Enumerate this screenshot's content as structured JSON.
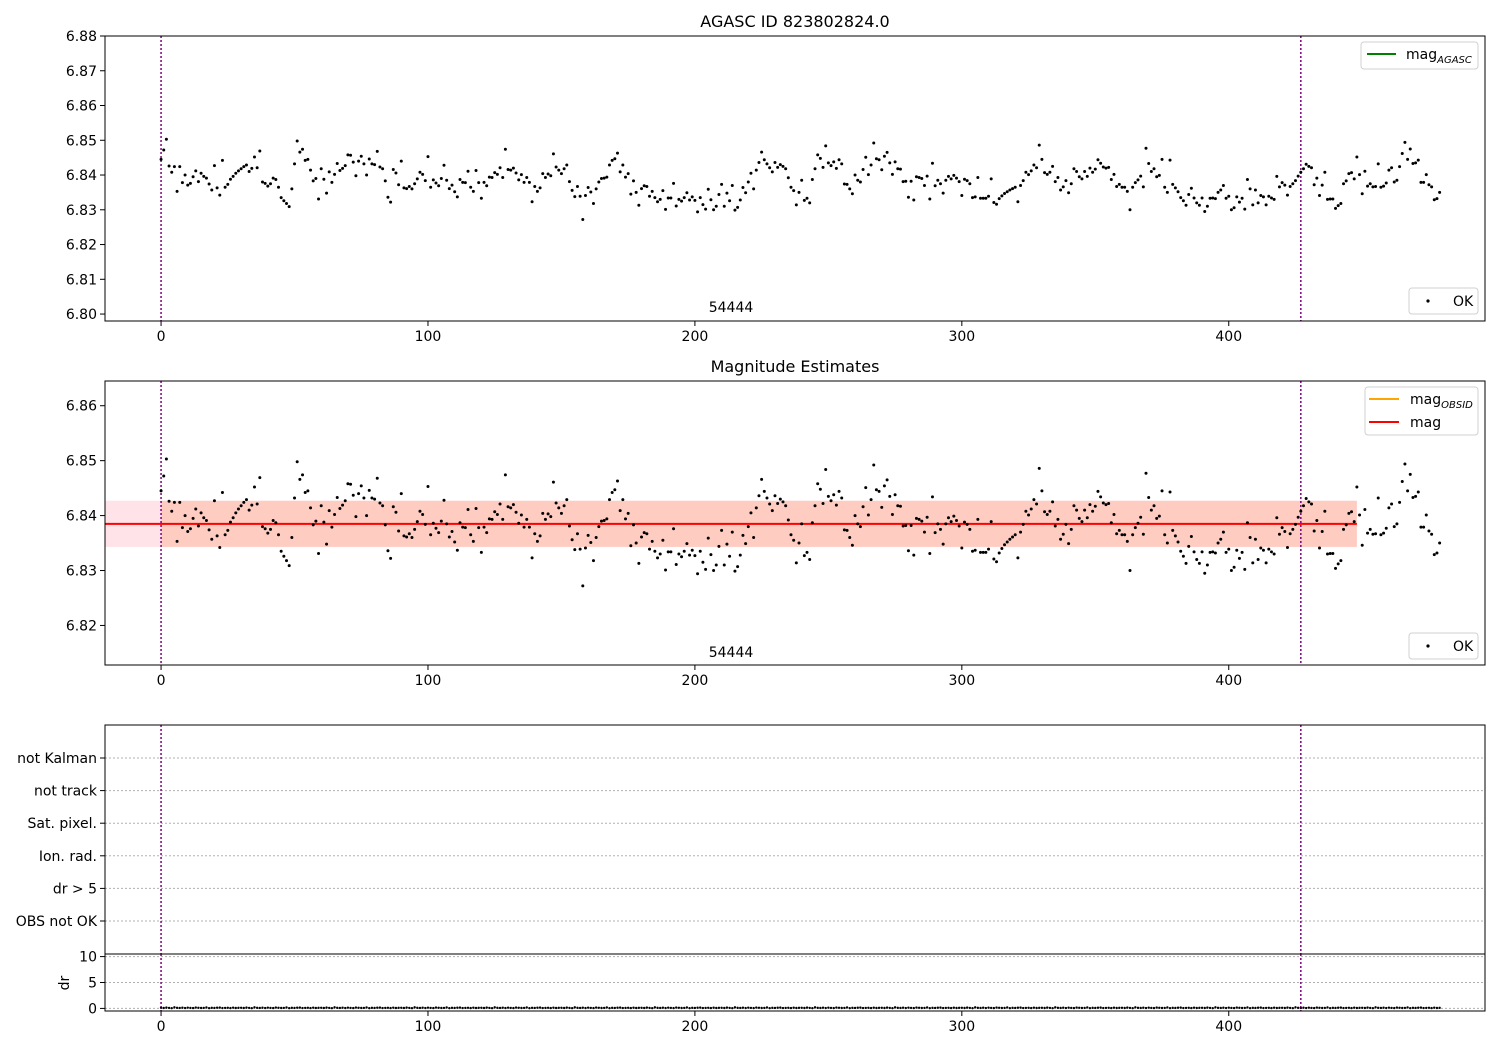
{
  "chart_data": [
    {
      "type": "scatter",
      "title": "AGASC ID 823802824.0",
      "xlim": [
        -21,
        496
      ],
      "ylim": [
        6.798,
        6.88
      ],
      "xticks": [
        0,
        100,
        200,
        300,
        400
      ],
      "yticks": [
        6.8,
        6.81,
        6.82,
        6.83,
        6.84,
        6.85,
        6.86,
        6.87,
        6.88
      ],
      "ytick_labels": [
        "6.80",
        "6.81",
        "6.82",
        "6.83",
        "6.84",
        "6.85",
        "6.86",
        "6.87",
        "6.88"
      ],
      "grid": false,
      "vlines": [
        0,
        427
      ],
      "annotation": {
        "text": "54444",
        "x": 213,
        "y": 6.8005
      },
      "legend_upper": {
        "placement": "top-right",
        "entries": [
          {
            "label": "mag",
            "subscript": "AGASC",
            "color": "#008000"
          }
        ]
      },
      "legend_lower": {
        "placement": "bottom-right",
        "entries": [
          {
            "label": "OK",
            "marker": "point",
            "color": "#000000"
          }
        ]
      },
      "series": [
        {
          "name": "OK",
          "values_ref": "magnitudes"
        }
      ]
    },
    {
      "type": "scatter",
      "title": "Magnitude Estimates",
      "xlim": [
        -21,
        496
      ],
      "ylim": [
        6.8128,
        6.8645
      ],
      "xticks": [
        0,
        100,
        200,
        300,
        400
      ],
      "yticks": [
        6.82,
        6.83,
        6.84,
        6.85,
        6.86
      ],
      "ytick_labels": [
        "6.82",
        "6.83",
        "6.84",
        "6.85",
        "6.86"
      ],
      "grid": false,
      "vlines": [
        0,
        427
      ],
      "annotation": {
        "text": "54444",
        "x": 213,
        "y": 6.8139
      },
      "band_obsid": {
        "x": [
          -21,
          448
        ],
        "y": [
          6.8343,
          6.8427
        ],
        "color": "#ffc0cb"
      },
      "band_mag": {
        "x": [
          0,
          448
        ],
        "y": [
          6.8343,
          6.8427
        ],
        "color": "#ffa07a"
      },
      "mean_line": {
        "value": 6.8385,
        "x": [
          -21,
          448
        ],
        "color": "#ff0000"
      },
      "legend_upper": {
        "placement": "top-right",
        "entries": [
          {
            "label": "mag",
            "subscript": "OBSID",
            "color": "#ffa500"
          },
          {
            "label": "mag",
            "subscript": "",
            "color": "#ff0000"
          }
        ]
      },
      "legend_lower": {
        "placement": "bottom-right",
        "entries": [
          {
            "label": "OK",
            "marker": "point",
            "color": "#000000"
          }
        ]
      },
      "series": [
        {
          "name": "OK",
          "values_ref": "magnitudes"
        }
      ]
    },
    {
      "type": "scatter",
      "title": "",
      "categories": [
        "OBS not OK",
        "dr > 5",
        "Ion. rad.",
        "Sat. pixel.",
        "not track",
        "not Kalman"
      ],
      "grid": true,
      "vlines": [
        0,
        427
      ],
      "xlim": [
        -21,
        496
      ]
    },
    {
      "type": "scatter",
      "title": "",
      "ylabel": "dr",
      "xlim": [
        -21,
        496
      ],
      "ylim": [
        -0.5,
        10.5
      ],
      "xticks": [
        0,
        100,
        200,
        300,
        400
      ],
      "yticks": [
        0,
        5,
        10
      ],
      "grid": true,
      "vlines": [
        0,
        427
      ],
      "series": [
        {
          "name": "dr",
          "values": [
            0.12,
            0.08,
            0.15,
            0.1,
            0.05,
            0.2,
            0.11,
            0.09,
            0.13,
            0.07,
            0.14,
            0.1,
            0.06,
            0.16,
            0.12,
            0.08,
            0.1,
            0.18,
            0.05,
            0.11,
            0.09,
            0.13,
            0.15,
            0.07,
            0.1,
            0.12,
            0.06,
            0.14,
            0.08,
            0.11
          ]
        }
      ]
    }
  ],
  "magnitudes": [
    6.8445,
    6.8472,
    6.8503,
    6.8426,
    6.8408,
    6.8424,
    6.8353,
    6.8424,
    6.8378,
    6.84,
    6.8371,
    6.8376,
    6.8395,
    6.8412,
    6.8381,
    6.8405,
    6.8396,
    6.8391,
    6.8374,
    6.8357,
    6.8427,
    6.8363,
    6.8342,
    6.8442,
    6.8365,
    6.8373,
    6.8388,
    6.8396,
    6.8405,
    6.8412,
    6.8418,
    6.8424,
    6.8429,
    6.841,
    6.8419,
    6.8452,
    6.8421,
    6.8469,
    6.838,
    6.8376,
    6.8368,
    6.8375,
    6.8391,
    6.8387,
    6.8365,
    6.8335,
    6.8326,
    6.8318,
    6.8309,
    6.836,
    6.8432,
    6.8498,
    6.8466,
    6.8474,
    6.8442,
    6.8445,
    6.8414,
    6.8383,
    6.839,
    6.8331,
    6.8418,
    6.8388,
    6.8348,
    6.8409,
    6.8379,
    6.8402,
    6.8433,
    6.8413,
    6.8419,
    6.8427,
    6.8458,
    6.8457,
    6.8437,
    6.8398,
    6.844,
    6.8454,
    6.8432,
    6.84,
    6.8446,
    6.8432,
    6.843,
    6.8468,
    6.8423,
    6.8418,
    6.8383,
    6.8336,
    6.8322,
    6.8416,
    6.8406,
    6.8372,
    6.844,
    6.8363,
    6.8361,
    6.8367,
    6.836,
    6.8375,
    6.8389,
    6.8408,
    6.8402,
    6.8384,
    6.8453,
    6.8365,
    6.8386,
    6.8377,
    6.8369,
    6.839,
    6.8428,
    6.8385,
    6.8361,
    6.8371,
    6.8352,
    6.8337,
    6.8387,
    6.8379,
    6.8378,
    6.8411,
    6.8365,
    6.8353,
    6.8413,
    6.8378,
    6.8333,
    6.8379,
    6.8369,
    6.8394,
    6.8393,
    6.8407,
    6.8402,
    6.8421,
    6.8393,
    6.8474,
    6.8416,
    6.8414,
    6.842,
    6.8406,
    6.8386,
    6.8401,
    6.8379,
    6.8393,
    6.8379,
    6.8323,
    6.8367,
    6.8353,
    6.8363,
    6.8404,
    6.8393,
    6.8403,
    6.8398,
    6.8461,
    6.8423,
    6.8414,
    6.8404,
    6.8418,
    6.8429,
    6.8381,
    6.8356,
    6.8338,
    6.8367,
    6.8339,
    6.8272,
    6.8341,
    6.8364,
    6.8351,
    6.8318,
    6.836,
    6.838,
    6.839,
    6.8391,
    6.8394,
    6.8429,
    6.8442,
    6.8447,
    6.8463,
    6.8409,
    6.8429,
    6.8394,
    6.8404,
    6.8345,
    6.8383,
    6.835,
    6.8313,
    6.8361,
    6.8369,
    6.8367,
    6.8339,
    6.8353,
    6.8335,
    6.8323,
    6.833,
    6.8355,
    6.8301,
    6.8334,
    6.8334,
    6.8376,
    6.8311,
    6.833,
    6.8325,
    6.8335,
    6.8349,
    6.8328,
    6.8337,
    6.8327,
    6.8294,
    6.8335,
    6.8315,
    6.8302,
    6.8359,
    6.8329,
    6.83,
    6.831,
    6.8344,
    6.8373,
    6.831,
    6.8348,
    6.8326,
    6.837,
    6.8299,
    6.8307,
    6.8328,
    6.8364,
    6.8349,
    6.838,
    6.8405,
    6.836,
    6.8414,
    6.8436,
    6.8466,
    6.8444,
    6.8432,
    6.8421,
    6.8409,
    6.8436,
    6.8422,
    6.843,
    6.8425,
    6.8418,
    6.8392,
    6.8365,
    6.8355,
    6.8314,
    6.835,
    6.8385,
    6.8327,
    6.8333,
    6.832,
    6.8387,
    6.8418,
    6.8458,
    6.8448,
    6.8422,
    6.8484,
    6.8435,
    6.8427,
    6.8438,
    6.8419,
    6.8444,
    6.8432,
    6.8374,
    6.8373,
    6.836,
    6.8346,
    6.84,
    6.8385,
    6.838,
    6.8416,
    6.8451,
    6.8401,
    6.8429,
    6.8492,
    6.8447,
    6.8444,
    6.8415,
    6.8454,
    6.8465,
    6.8435,
    6.8402,
    6.8438,
    6.8418,
    6.8417,
    6.8381,
    6.8382,
    6.8336,
    6.8382,
    6.8328,
    6.8395,
    6.8393,
    6.839,
    6.837,
    6.8397,
    6.8331,
    6.8434,
    6.8369,
    6.8385,
    6.8375,
    6.8348,
    6.8385,
    6.8396,
    6.8389,
    6.8399,
    6.8391,
    6.8381,
    6.8341,
    6.8388,
    6.8384,
    6.8375,
    6.8335,
    6.8337,
    6.8393,
    6.8333,
    6.8333,
    6.8333,
    6.8339,
    6.8389,
    6.8321,
    6.8316,
    6.8332,
    6.834,
    6.8347,
    6.8352,
    6.8357,
    6.8361,
    6.8365,
    6.8323,
    6.837,
    6.8384,
    6.8408,
    6.8401,
    6.8412,
    6.8429,
    6.8421,
    6.8486,
    6.8445,
    6.8407,
    6.8402,
    6.8408,
    6.8425,
    6.8381,
    6.8393,
    6.8357,
    6.8366,
    6.8384,
    6.8349,
    6.8375,
    6.8418,
    6.841,
    6.8395,
    6.8389,
    6.841,
    6.8396,
    6.842,
    6.8408,
    6.8417,
    6.8444,
    6.8434,
    6.8423,
    6.842,
    6.8422,
    6.8387,
    6.8402,
    6.8367,
    6.8373,
    6.8365,
    6.8365,
    6.8353,
    6.83,
    6.8365,
    6.8378,
    6.8386,
    6.8397,
    6.8366,
    6.8477,
    6.8433,
    6.841,
    6.8418,
    6.8395,
    6.8399,
    6.8445,
    6.8365,
    6.835,
    6.8443,
    6.8373,
    6.8363,
    6.8352,
    6.8335,
    6.8326,
    6.8313,
    6.8344,
    6.8362,
    6.8334,
    6.832,
    6.8313,
    6.8334,
    6.8295,
    6.831,
    6.8333,
    6.8334,
    6.8332,
    6.835,
    6.8357,
    6.837,
    6.8333,
    6.8339,
    6.83,
    6.8306,
    6.8337,
    6.8322,
    6.8333,
    6.8302,
    6.8387,
    6.836,
    6.8314,
    6.8357,
    6.832,
    6.8341,
    6.8337,
    6.8314,
    6.8339,
    6.8334,
    6.833,
    6.8396,
    6.8366,
    6.8378,
    6.8371,
    6.8342,
    6.8367,
    6.8375,
    6.8384,
    6.8397,
    6.8408,
    6.8418,
    6.8431,
    6.8425,
    6.8421,
    6.8372,
    6.8391,
    6.8341,
    6.8371,
    6.8408,
    6.833,
    6.8331,
    6.8331,
    6.8304,
    6.8312,
    6.8318,
    6.8375,
    6.8383,
    6.8404,
    6.8407,
    6.8389,
    6.8452,
    6.8401,
    6.8346,
    6.8411,
    6.8368,
    6.8375,
    6.8366,
    6.8367,
    6.8432,
    6.8365,
    6.8368,
    6.8377,
    6.8414,
    6.8421,
    6.838,
    6.8385,
    6.8424,
    6.8462,
    6.8494,
    6.8445,
    6.8475,
    6.8433,
    6.8435,
    6.8443,
    6.8379,
    6.8379,
    6.8401,
    6.8372,
    6.8366,
    6.8329,
    6.8332,
    6.835
  ]
}
